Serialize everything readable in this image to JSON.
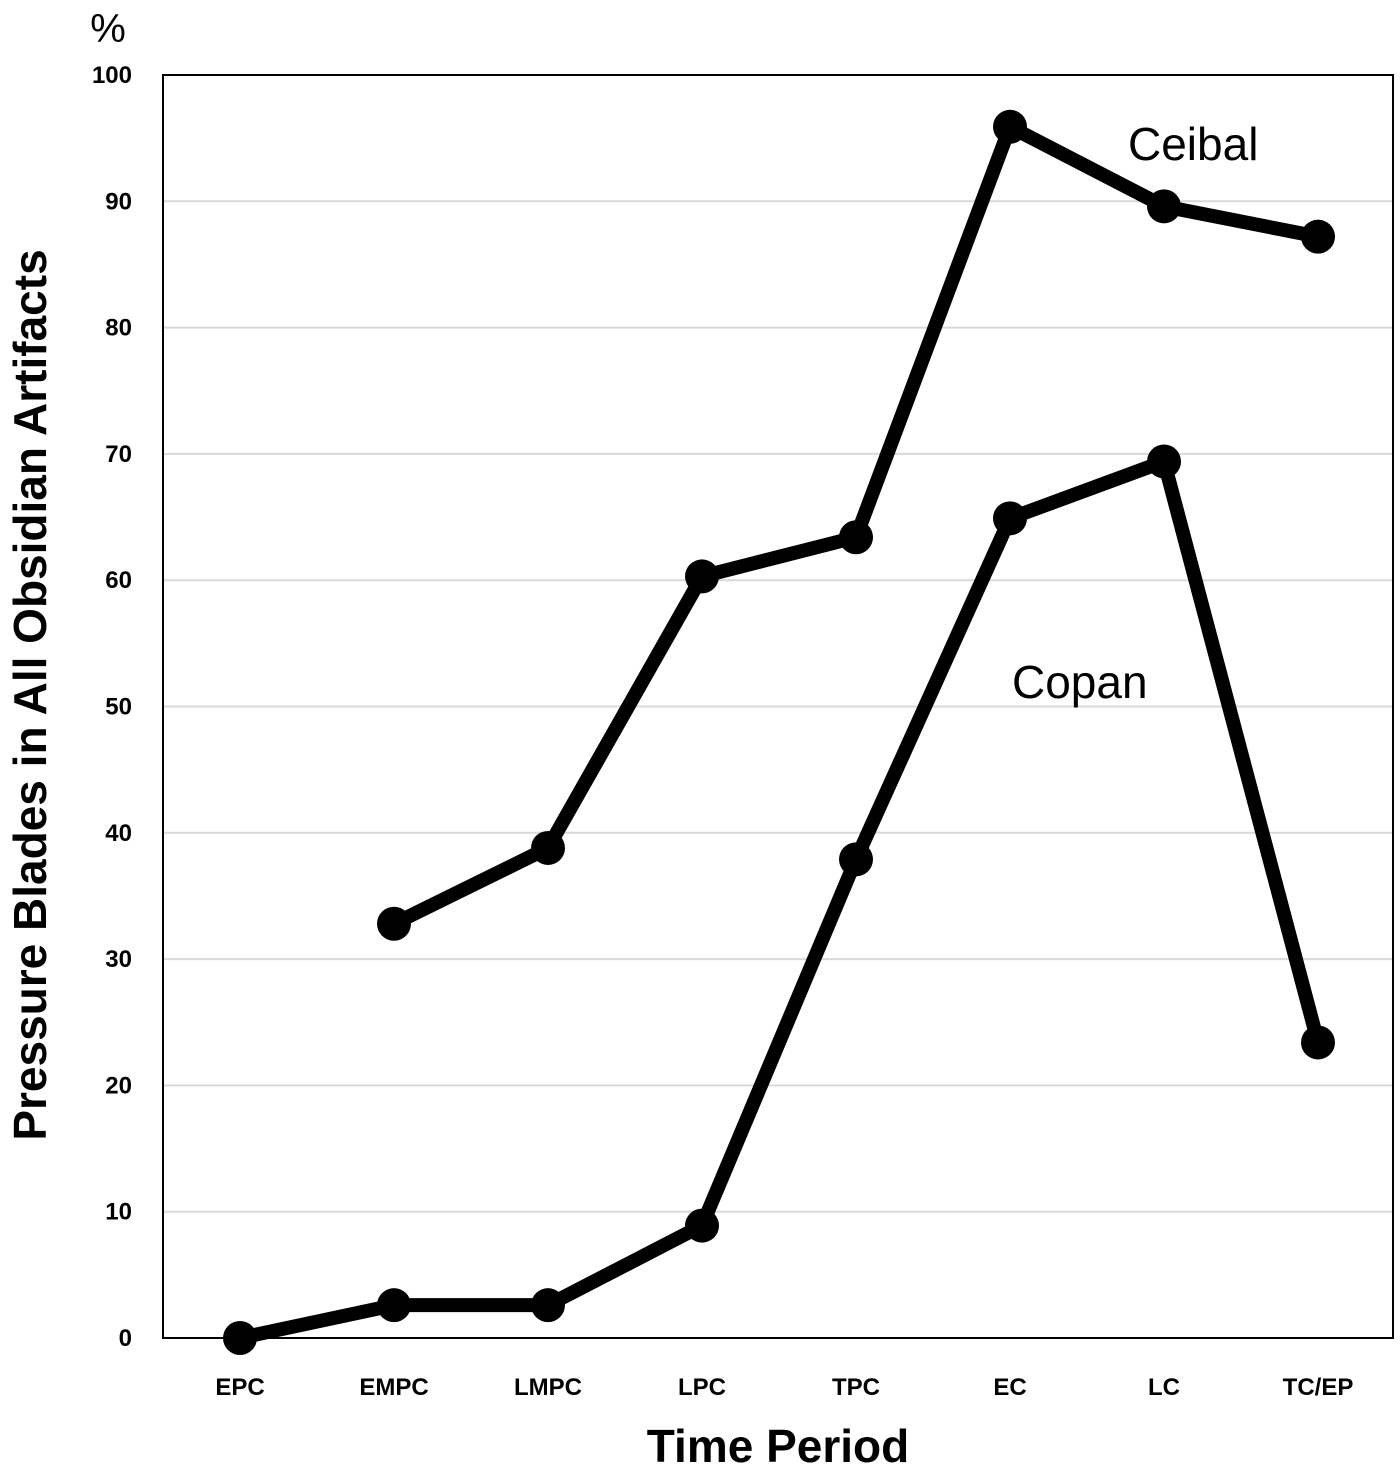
{
  "chart_data": {
    "type": "line",
    "xlabel": "Time Period",
    "ylabel": "Pressure Blades in All Obsidian Artifacts",
    "y_unit": "%",
    "ylim": [
      0,
      100
    ],
    "yticks": [
      0,
      10,
      20,
      30,
      40,
      50,
      60,
      70,
      80,
      90,
      100
    ],
    "grid": true,
    "categories": [
      "EPC",
      "EMPC",
      "LMPC",
      "LPC",
      "TPC",
      "EC",
      "LC",
      "TC/EP"
    ],
    "series": [
      {
        "name": "Ceibal",
        "values": [
          null,
          32.8,
          38.8,
          60.3,
          63.4,
          95.9,
          89.6,
          87.2
        ]
      },
      {
        "name": "Copan",
        "values": [
          0,
          2.6,
          2.6,
          8.9,
          37.9,
          64.9,
          69.4,
          23.4
        ]
      }
    ]
  }
}
